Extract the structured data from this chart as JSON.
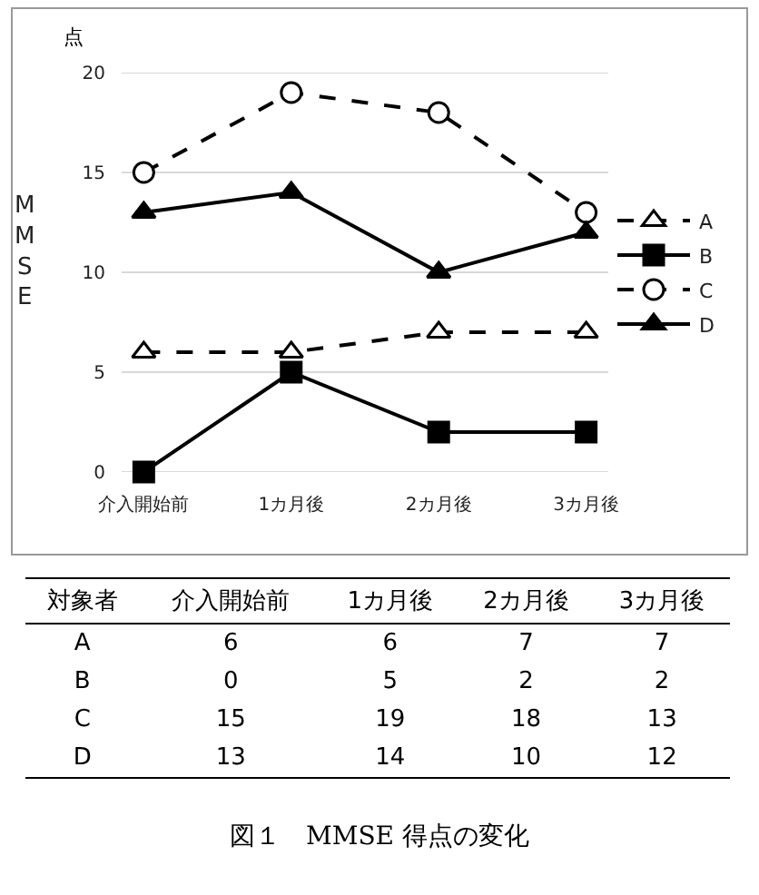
{
  "chart_data": [
    {
      "type": "line",
      "title": "図１　MMSE 得点の変化",
      "ylabel": "MMSE",
      "annotations": [
        "点"
      ],
      "categories": [
        "介入開始前",
        "1カ月後",
        "2カ月後",
        "3カ月後"
      ],
      "series": [
        {
          "name": "A",
          "color": "#000000",
          "colors": [
            "#ffffff",
            "#ffffff",
            "#ffffff",
            "#ffffff"
          ],
          "values": [
            6,
            6,
            7,
            7
          ],
          "marker": "triangle",
          "line_style": "dashed"
        },
        {
          "name": "B",
          "color": "#000000",
          "values": [
            0,
            5,
            2,
            2
          ],
          "marker": "square",
          "line_style": "solid"
        },
        {
          "name": "C",
          "color": "#000000",
          "colors": [
            "#ffffff",
            "#ffffff",
            "#ffffff",
            "#ffffff"
          ],
          "values": [
            15,
            19,
            18,
            13
          ],
          "marker": "circle",
          "line_style": "dashed"
        },
        {
          "name": "D",
          "color": "#000000",
          "values": [
            13,
            14,
            10,
            12
          ],
          "marker": "triangle",
          "line_style": "solid"
        }
      ],
      "ylim": [
        0,
        20
      ],
      "yticks": [
        0,
        5,
        10,
        15,
        20
      ],
      "grid": "y",
      "legend": "right"
    },
    {
      "type": "other",
      "legend_title": "対象者",
      "data_labels": true,
      "categories": [
        "介入開始前",
        "1カ月後",
        "2カ月後",
        "3カ月後"
      ],
      "series": [
        {
          "name": "A",
          "values": [
            6,
            6,
            7,
            7
          ]
        },
        {
          "name": "B",
          "values": [
            0,
            5,
            2,
            2
          ]
        },
        {
          "name": "C",
          "values": [
            15,
            19,
            18,
            13
          ]
        },
        {
          "name": "D",
          "values": [
            13,
            14,
            10,
            12
          ]
        }
      ]
    }
  ]
}
